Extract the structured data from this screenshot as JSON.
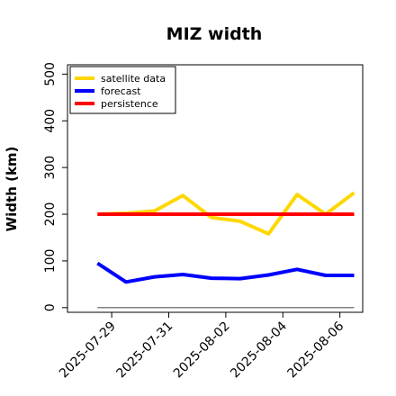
{
  "chart_data": {
    "type": "line",
    "title": "MIZ width",
    "ylabel": "Width (km)",
    "xlabel": "",
    "ylim": [
      -10,
      520
    ],
    "yticks": [
      0,
      100,
      200,
      300,
      400,
      500
    ],
    "tick_labels": [
      {
        "text": "2025-07-29",
        "color": "#228B22",
        "pos": 0.5
      },
      {
        "text": "2025-07-31",
        "color": "#000000",
        "pos": 2.5
      },
      {
        "text": "2025-08-02",
        "color": "#000000",
        "pos": 4.5
      },
      {
        "text": "2025-08-04",
        "color": "#000000",
        "pos": 6.5
      },
      {
        "text": "2025-08-06",
        "color": "#000000",
        "pos": 8.5
      }
    ],
    "x": [
      0,
      1,
      2,
      3,
      4,
      5,
      6,
      7,
      8,
      9
    ],
    "xlim": [
      -1.05,
      9.3
    ],
    "series": [
      {
        "name": "satellite data",
        "color": "#FFD700",
        "values": [
          200,
          202,
          207,
          240,
          193,
          185,
          158,
          242,
          200,
          246
        ]
      },
      {
        "name": "forecast",
        "color": "#0000FF",
        "values": [
          95,
          55,
          66,
          71,
          63,
          62,
          70,
          82,
          69,
          69
        ]
      },
      {
        "name": "persistence",
        "color": "#FF0000",
        "values": [
          200,
          200,
          200,
          200,
          200,
          200,
          200,
          200,
          200,
          200
        ]
      }
    ],
    "reference_line": {
      "value": 0,
      "color": "#808080"
    },
    "legend": "top-left",
    "grid": false
  }
}
